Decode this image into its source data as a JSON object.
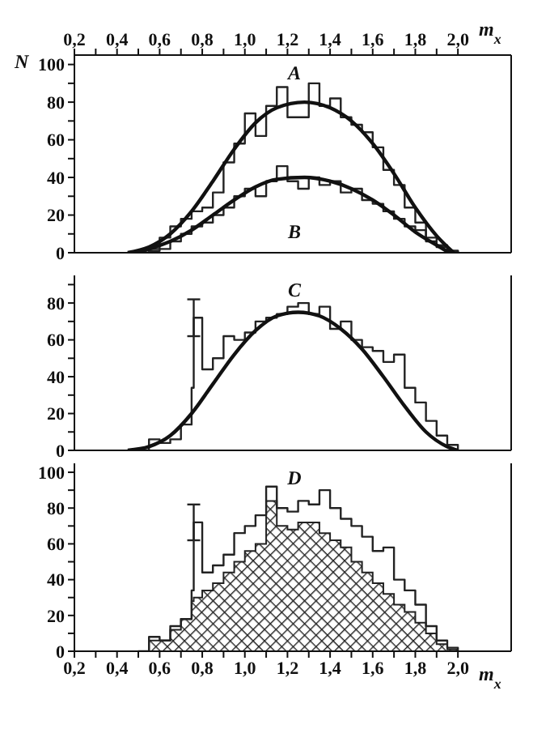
{
  "chart_data": [
    {
      "type": "step",
      "ylabel": "N",
      "xlabel": "m$_{x}$",
      "xlim": [
        0.2,
        2.25
      ],
      "xticks": [
        {
          "value": 0.2,
          "label": "0,2"
        },
        {
          "value": 0.3,
          "label": null
        },
        {
          "value": 0.4,
          "label": "0,4"
        },
        {
          "value": 0.5,
          "label": null
        },
        {
          "value": 0.6,
          "label": "0,6"
        },
        {
          "value": 0.7,
          "label": null
        },
        {
          "value": 0.8,
          "label": "0,8"
        },
        {
          "value": 0.9,
          "label": null
        },
        {
          "value": 1.0,
          "label": "1,0"
        },
        {
          "value": 1.1,
          "label": null
        },
        {
          "value": 1.2,
          "label": "1,2"
        },
        {
          "value": 1.3,
          "label": null
        },
        {
          "value": 1.4,
          "label": "1,4"
        },
        {
          "value": 1.5,
          "label": null
        },
        {
          "value": 1.6,
          "label": "1,6"
        },
        {
          "value": 1.7,
          "label": null
        },
        {
          "value": 1.8,
          "label": "1,8"
        },
        {
          "value": 1.9,
          "label": null
        },
        {
          "value": 2.0,
          "label": "2,0"
        }
      ],
      "ylim": [
        0,
        105
      ],
      "yticks": [
        0,
        {
          "value": 10,
          "label": null
        },
        20,
        {
          "value": 30,
          "label": null
        },
        40,
        {
          "value": 50,
          "label": null
        },
        60,
        {
          "value": 70,
          "label": null
        },
        80,
        {
          "value": 90,
          "label": null
        },
        100
      ],
      "annotations": [
        "A",
        "B"
      ],
      "series": [
        {
          "type": "step",
          "color": "#222222",
          "x": [
            0.5,
            0.55,
            0.6,
            0.65,
            0.7,
            0.75,
            0.8,
            0.85,
            0.9,
            0.95,
            1.0,
            1.05,
            1.1,
            1.15,
            1.2,
            1.25,
            1.3,
            1.35,
            1.4,
            1.45,
            1.5,
            1.55,
            1.6,
            1.65,
            1.7,
            1.75,
            1.8,
            1.85,
            1.9,
            1.95,
            2.0
          ],
          "values": [
            0,
            2,
            8,
            14,
            18,
            22,
            24,
            32,
            48,
            58,
            74,
            62,
            78,
            88,
            72,
            72,
            90,
            78,
            82,
            72,
            68,
            64,
            56,
            44,
            36,
            24,
            16,
            8,
            4,
            1,
            0
          ]
        },
        {
          "type": "step",
          "color": "#222222",
          "x": [
            0.5,
            0.55,
            0.6,
            0.65,
            0.7,
            0.75,
            0.8,
            0.85,
            0.9,
            0.95,
            1.0,
            1.05,
            1.1,
            1.15,
            1.2,
            1.25,
            1.3,
            1.35,
            1.4,
            1.45,
            1.5,
            1.55,
            1.6,
            1.65,
            1.7,
            1.75,
            1.8,
            1.85,
            1.9,
            1.95,
            2.0
          ],
          "values": [
            0,
            1,
            2,
            6,
            10,
            14,
            16,
            20,
            24,
            30,
            34,
            30,
            38,
            46,
            38,
            34,
            40,
            36,
            38,
            32,
            34,
            28,
            26,
            22,
            18,
            14,
            12,
            6,
            3,
            1,
            0
          ]
        },
        {
          "type": "line",
          "color": "#111111",
          "x": [
            0.45,
            0.55,
            0.65,
            0.75,
            0.85,
            0.95,
            1.05,
            1.15,
            1.28,
            1.4,
            1.5,
            1.6,
            1.7,
            1.8,
            1.9,
            1.98
          ],
          "values": [
            0,
            3,
            10,
            22,
            38,
            55,
            69,
            77,
            80,
            77,
            70,
            58,
            42,
            24,
            9,
            0
          ]
        },
        {
          "type": "line",
          "color": "#111111",
          "x": [
            0.49,
            0.55,
            0.65,
            0.75,
            0.85,
            0.95,
            1.05,
            1.15,
            1.28,
            1.4,
            1.5,
            1.6,
            1.7,
            1.8,
            1.9,
            1.96
          ],
          "values": [
            0,
            2,
            6,
            12,
            20,
            28,
            35,
            39,
            40,
            38,
            34,
            28,
            20,
            11,
            4,
            0
          ]
        }
      ]
    },
    {
      "type": "step",
      "xlim": [
        0.2,
        2.25
      ],
      "tick_labels": "y",
      "ylim": [
        0,
        95
      ],
      "yticks": [
        0,
        {
          "value": 10,
          "label": null
        },
        20,
        {
          "value": 30,
          "label": null
        },
        40,
        {
          "value": 50,
          "label": null
        },
        60,
        {
          "value": 70,
          "label": null
        },
        80,
        {
          "value": 90,
          "label": null
        }
      ],
      "annotations": [
        "C"
      ],
      "series": [
        {
          "type": "step",
          "color": "#222222",
          "x": [
            0.5,
            0.55,
            0.6,
            0.65,
            0.7,
            0.75,
            0.76,
            0.8,
            0.85,
            0.9,
            0.95,
            1.0,
            1.05,
            1.1,
            1.15,
            1.2,
            1.25,
            1.3,
            1.35,
            1.4,
            1.45,
            1.5,
            1.55,
            1.6,
            1.65,
            1.7,
            1.75,
            1.8,
            1.85,
            1.9,
            1.95,
            2.0
          ],
          "values": [
            0,
            6,
            4,
            6,
            14,
            34,
            72,
            44,
            50,
            62,
            60,
            64,
            70,
            72,
            74,
            78,
            80,
            74,
            78,
            66,
            70,
            60,
            56,
            54,
            48,
            52,
            34,
            26,
            16,
            8,
            3,
            0
          ],
          "errors": [
            null,
            null,
            null,
            null,
            null,
            null,
            10,
            null,
            null,
            null,
            null,
            null,
            null,
            null,
            null,
            null,
            null,
            null,
            null,
            null,
            null,
            null,
            null,
            null,
            null,
            null,
            null,
            null,
            null,
            null,
            null,
            null
          ]
        },
        {
          "type": "line",
          "color": "#111111",
          "x": [
            0.45,
            0.55,
            0.65,
            0.75,
            0.85,
            0.95,
            1.05,
            1.15,
            1.25,
            1.35,
            1.45,
            1.55,
            1.65,
            1.75,
            1.85,
            1.95,
            2.0
          ],
          "values": [
            0,
            2,
            8,
            20,
            36,
            52,
            65,
            73,
            75,
            73,
            66,
            55,
            40,
            24,
            10,
            2,
            0
          ]
        }
      ]
    },
    {
      "type": "step",
      "xlabel": "m$_{x}$",
      "xlim": [
        0.2,
        2.25
      ],
      "xticks": [
        {
          "value": 0.2,
          "label": "0,2"
        },
        {
          "value": 0.3,
          "label": null
        },
        {
          "value": 0.4,
          "label": "0,4"
        },
        {
          "value": 0.5,
          "label": null
        },
        {
          "value": 0.6,
          "label": "0,6"
        },
        {
          "value": 0.7,
          "label": null
        },
        {
          "value": 0.8,
          "label": "0,8"
        },
        {
          "value": 0.9,
          "label": null
        },
        {
          "value": 1.0,
          "label": "1,0"
        },
        {
          "value": 1.1,
          "label": null
        },
        {
          "value": 1.2,
          "label": "1,2"
        },
        {
          "value": 1.3,
          "label": null
        },
        {
          "value": 1.4,
          "label": "1,4"
        },
        {
          "value": 1.5,
          "label": null
        },
        {
          "value": 1.6,
          "label": "1,6"
        },
        {
          "value": 1.7,
          "label": null
        },
        {
          "value": 1.8,
          "label": "1,8"
        },
        {
          "value": 1.9,
          "label": null
        },
        {
          "value": 2.0,
          "label": "2,0"
        }
      ],
      "ylim": [
        0,
        105
      ],
      "yticks": [
        0,
        {
          "value": 10,
          "label": null
        },
        20,
        {
          "value": 30,
          "label": null
        },
        40,
        {
          "value": 50,
          "label": null
        },
        60,
        {
          "value": 70,
          "label": null
        },
        80,
        {
          "value": 90,
          "label": null
        },
        100
      ],
      "annotations": [
        "D"
      ],
      "series": [
        {
          "type": "histogram",
          "color": "#222222",
          "bins": [
            0.5,
            0.55,
            0.6,
            0.65,
            0.7,
            0.75,
            0.76,
            0.8,
            0.85,
            0.9,
            0.95,
            1.0,
            1.05,
            1.1,
            1.15,
            1.2,
            1.25,
            1.3,
            1.35,
            1.4,
            1.45,
            1.5,
            1.55,
            1.6,
            1.65,
            1.7,
            1.75,
            1.8,
            1.85,
            1.9,
            1.95,
            2.0
          ],
          "values": [
            0,
            6,
            6,
            12,
            18,
            28,
            30,
            34,
            38,
            44,
            50,
            56,
            60,
            84,
            70,
            68,
            72,
            72,
            66,
            62,
            58,
            50,
            44,
            38,
            32,
            26,
            22,
            16,
            10,
            4,
            1
          ]
        },
        {
          "type": "step",
          "color": "#222222",
          "x": [
            0.5,
            0.55,
            0.6,
            0.65,
            0.7,
            0.75,
            0.76,
            0.8,
            0.85,
            0.9,
            0.95,
            1.0,
            1.05,
            1.1,
            1.15,
            1.2,
            1.25,
            1.3,
            1.35,
            1.4,
            1.45,
            1.5,
            1.55,
            1.6,
            1.65,
            1.7,
            1.75,
            1.8,
            1.85,
            1.9,
            1.95,
            2.0
          ],
          "values": [
            0,
            8,
            6,
            14,
            18,
            34,
            72,
            44,
            48,
            54,
            66,
            70,
            76,
            92,
            80,
            78,
            84,
            82,
            90,
            80,
            74,
            70,
            64,
            56,
            58,
            40,
            34,
            26,
            14,
            6,
            2,
            0
          ],
          "errors": [
            null,
            null,
            null,
            null,
            null,
            null,
            10,
            null,
            null,
            null,
            null,
            null,
            null,
            null,
            null,
            null,
            null,
            null,
            null,
            null,
            null,
            null,
            null,
            null,
            null,
            null,
            null,
            null,
            null,
            null,
            null,
            null
          ]
        }
      ]
    }
  ]
}
